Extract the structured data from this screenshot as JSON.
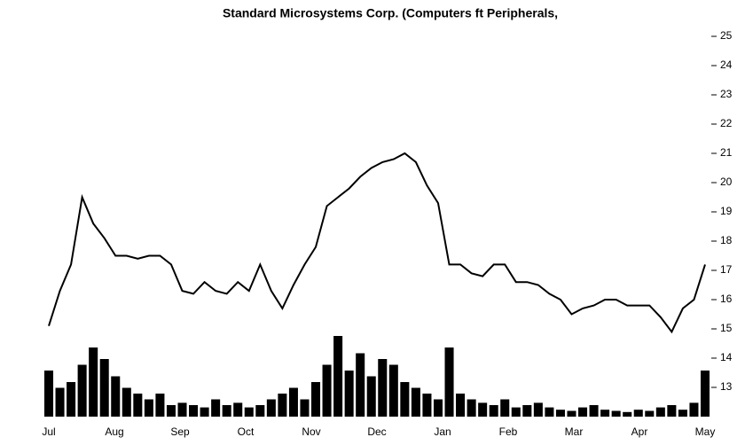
{
  "chart_data": {
    "type": "line",
    "title": "Standard Microsystems Corp. (Computers ft Peripherals,",
    "x_labels": [
      "Jul",
      "Aug",
      "Sep",
      "Oct",
      "Nov",
      "Dec",
      "Jan",
      "Feb",
      "Mar",
      "Apr",
      "May"
    ],
    "series": [
      {
        "name": "Price",
        "color": "#000000",
        "values": [
          15.1,
          16.3,
          17.2,
          19.5,
          18.6,
          18.1,
          17.5,
          17.5,
          17.4,
          17.5,
          17.5,
          17.2,
          16.3,
          16.2,
          16.6,
          16.3,
          16.2,
          16.6,
          16.3,
          17.2,
          16.3,
          15.7,
          16.5,
          17.2,
          17.8,
          19.2,
          19.5,
          19.8,
          20.2,
          20.5,
          20.7,
          20.8,
          21.0,
          20.7,
          19.9,
          19.3,
          17.2,
          17.2,
          16.9,
          16.8,
          17.2,
          17.2,
          16.6,
          16.6,
          16.5,
          16.2,
          16.0,
          15.5,
          15.7,
          15.8,
          16.0,
          16.0,
          15.8,
          15.8,
          15.8,
          15.4,
          14.9,
          15.7,
          16.0,
          17.2
        ]
      },
      {
        "name": "Volume",
        "color": "#000000",
        "axis": "y2",
        "values": [
          40,
          25,
          30,
          45,
          60,
          50,
          35,
          25,
          20,
          15,
          20,
          10,
          12,
          10,
          8,
          15,
          10,
          12,
          8,
          10,
          15,
          20,
          25,
          15,
          30,
          45,
          70,
          40,
          55,
          35,
          50,
          45,
          30,
          25,
          20,
          15,
          60,
          20,
          15,
          12,
          10,
          15,
          8,
          10,
          12,
          8,
          6,
          5,
          8,
          10,
          6,
          5,
          4,
          6,
          5,
          8,
          10,
          6,
          12,
          40
        ]
      }
    ],
    "ylim": [
      12,
      25
    ],
    "yticks": [
      13,
      14,
      15,
      16,
      17,
      18,
      19,
      20,
      21,
      22,
      23,
      24,
      25
    ],
    "y2lim": [
      0,
      100
    ]
  }
}
